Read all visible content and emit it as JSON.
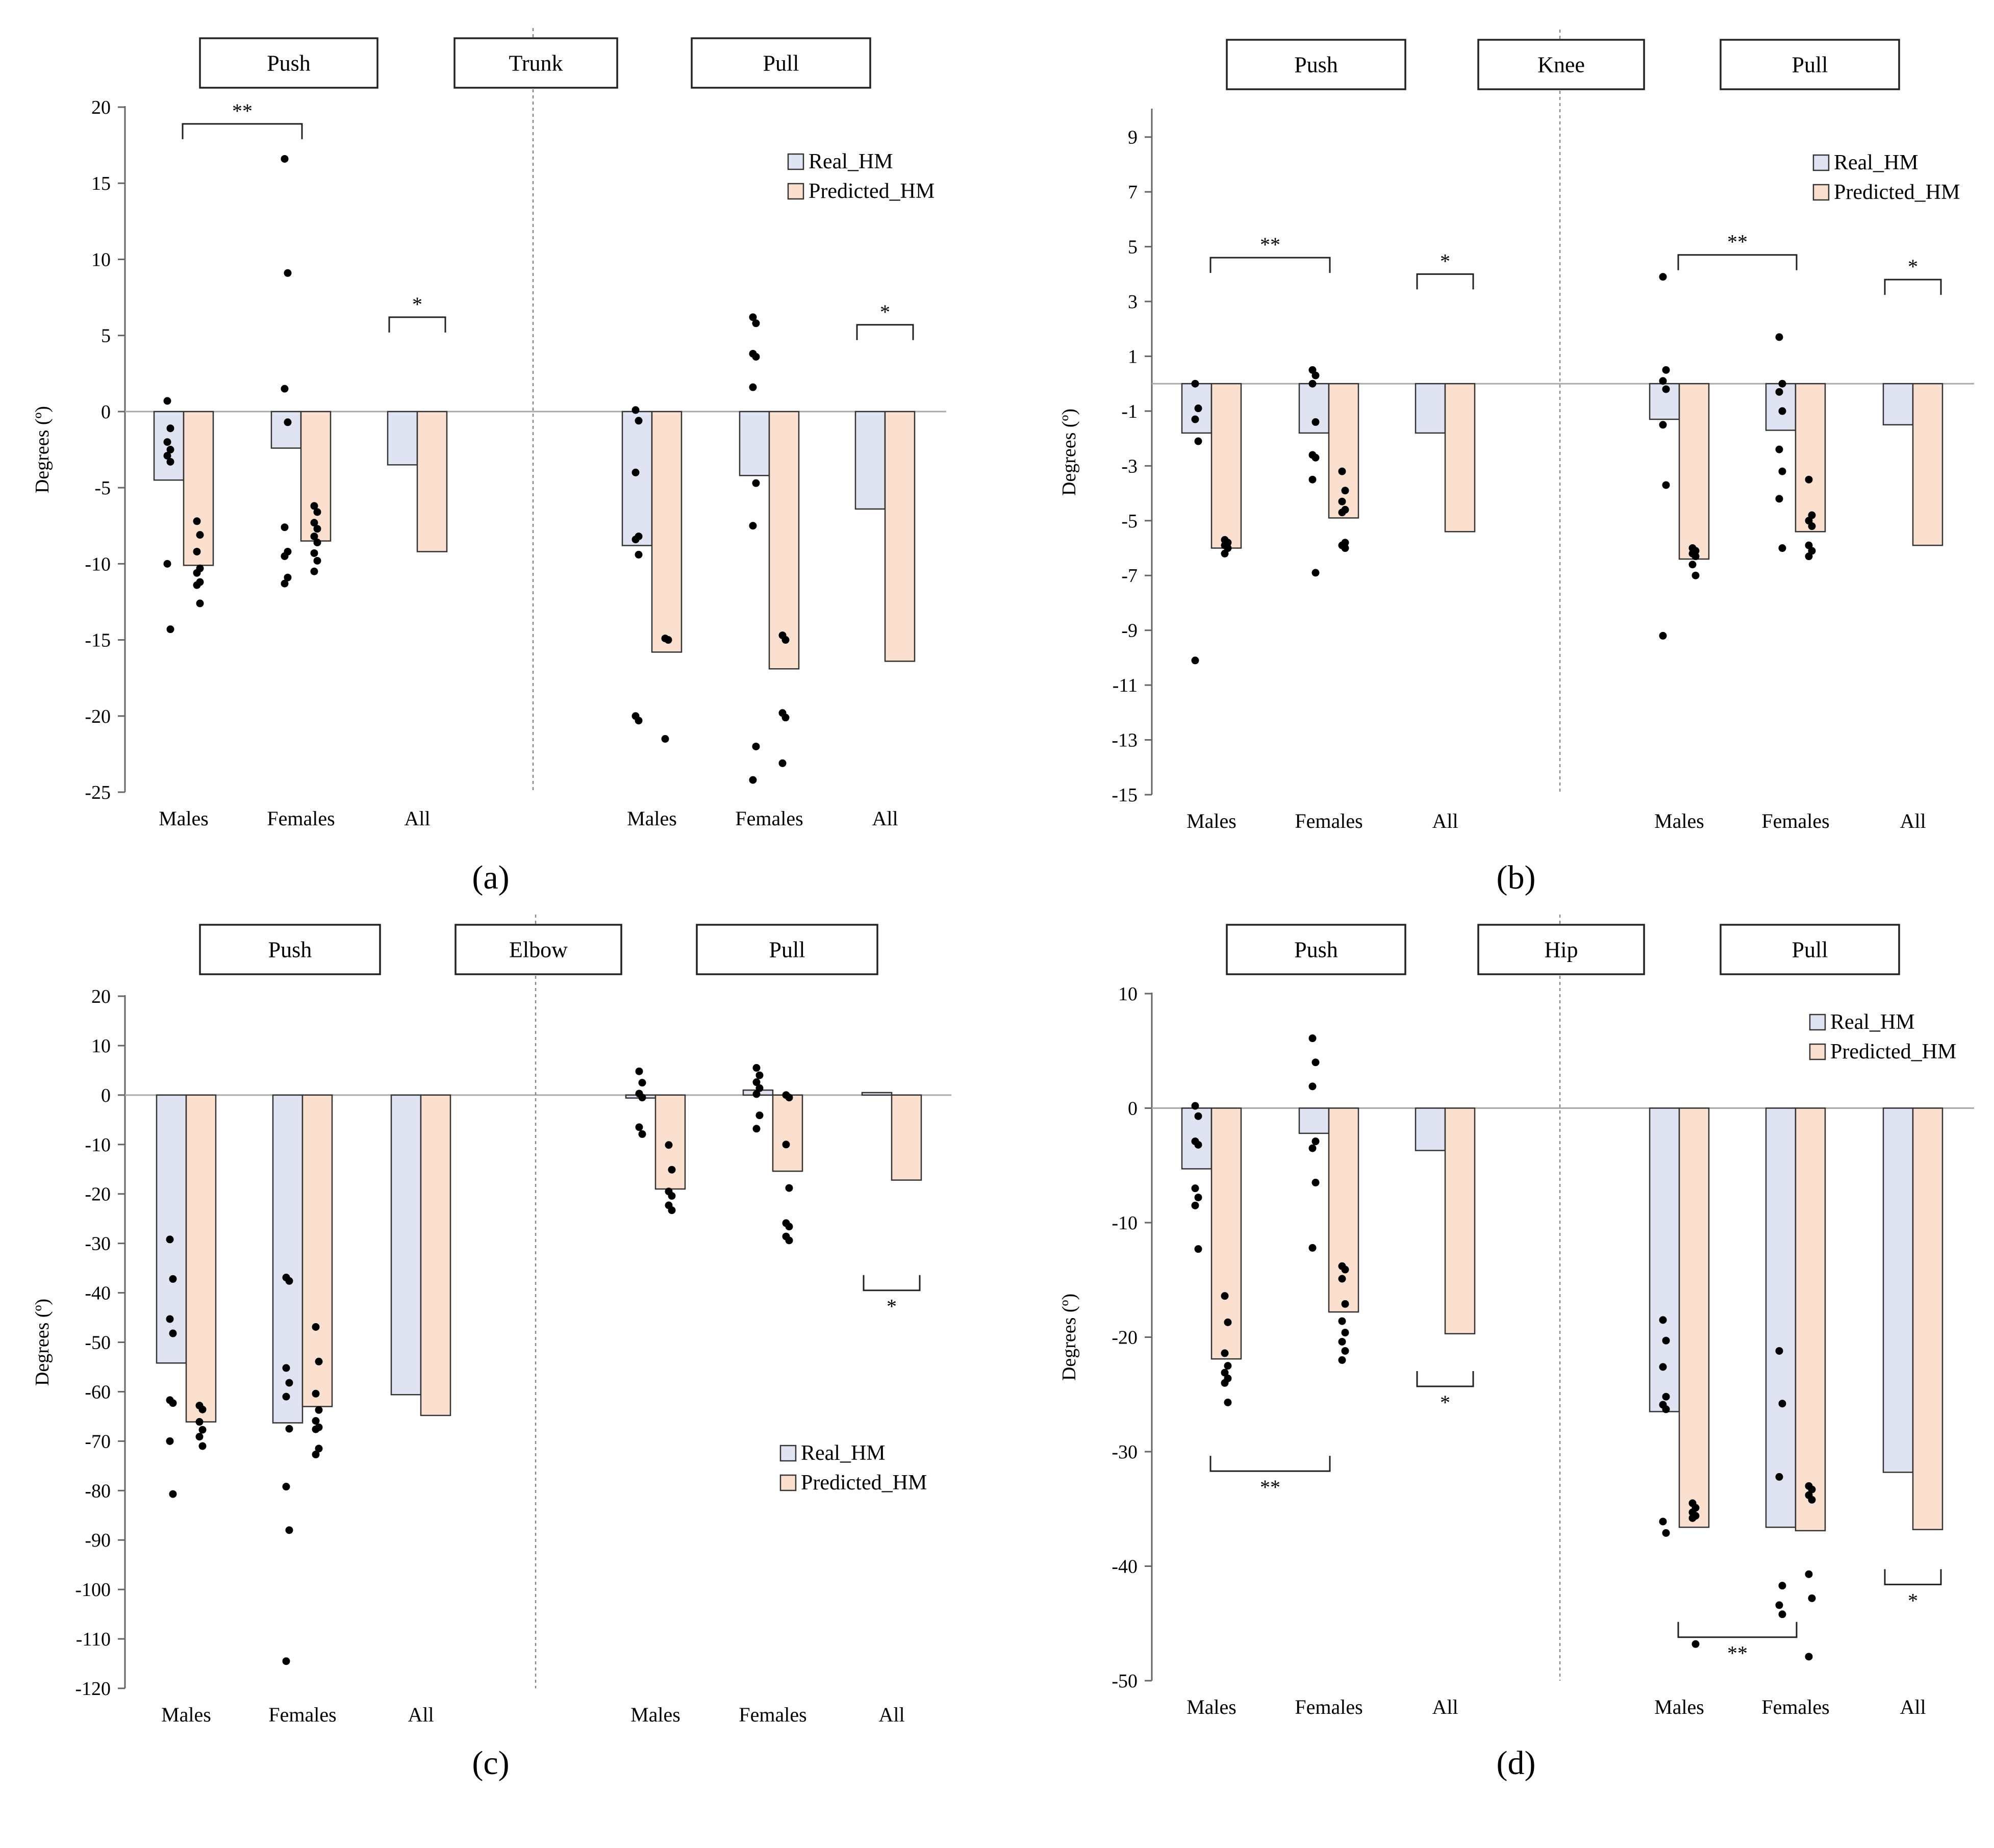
{
  "figure": {
    "colors": {
      "real_fill": "#dfe3f2",
      "predicted_fill": "#fbe0d0",
      "bar_stroke": "#333333",
      "dot": "#000000",
      "axis": "#666666",
      "zero_line": "#aaaaaa",
      "divider": "#888888"
    }
  },
  "chart_data": [
    {
      "panel_label": "(a)",
      "type": "bar",
      "section_labels": [
        "Push",
        "Trunk",
        "Pull"
      ],
      "ylabel": "Degrees (º)",
      "ylim": [
        -25,
        20
      ],
      "yticks": [
        20,
        15,
        10,
        5,
        0,
        -5,
        -10,
        -15,
        -20,
        -25
      ],
      "ytick_labels": [
        "20",
        "15",
        "10",
        "5",
        "0",
        "-5",
        "-10",
        "-15",
        "-20",
        "-25"
      ],
      "categories": [
        "Males",
        "Females",
        "All",
        "Males",
        "Females",
        "All"
      ],
      "legend_position": "top-right",
      "series": [
        {
          "name": "Real_HM",
          "values": [
            -4.5,
            -2.4,
            -3.5,
            -8.8,
            -4.2,
            -6.4
          ],
          "points": [
            [
              0.7,
              -1.1,
              -2.0,
              -2.5,
              -2.9,
              -3.3,
              -10.0,
              -14.3
            ],
            [
              16.6,
              9.1,
              1.5,
              -0.7,
              -7.6,
              -9.2,
              -9.5,
              -10.9,
              -11.3
            ],
            [],
            [
              0.1,
              -0.6,
              -4.0,
              -8.2,
              -8.4,
              -9.4,
              -20.0,
              -20.3
            ],
            [
              6.2,
              5.8,
              3.8,
              3.6,
              1.6,
              -4.7,
              -7.5,
              -22.0,
              -24.2
            ],
            []
          ]
        },
        {
          "name": "Predicted_HM",
          "values": [
            -10.1,
            -8.5,
            -9.2,
            -15.8,
            -16.9,
            -16.4
          ],
          "points": [
            [
              -7.2,
              -8.1,
              -9.2,
              -10.3,
              -10.6,
              -11.2,
              -11.4,
              -12.6
            ],
            [
              -6.2,
              -6.6,
              -7.3,
              -7.7,
              -8.2,
              -8.6,
              -9.3,
              -9.8,
              -10.5
            ],
            [],
            [
              -14.9,
              -15.0,
              -21.5
            ],
            [
              -14.7,
              -15.0,
              -19.8,
              -20.1,
              -23.1
            ],
            []
          ]
        }
      ],
      "brackets": [
        {
          "from_cat": 0,
          "to_cat": 1,
          "level": 18.9,
          "label": "**",
          "dir": "up"
        },
        {
          "from_cat": 2,
          "to_cat": 2,
          "level": 6.2,
          "label": "*",
          "dir": "up"
        },
        {
          "from_cat": 5,
          "to_cat": 5,
          "level": 5.7,
          "label": "*",
          "dir": "up"
        }
      ]
    },
    {
      "panel_label": "(b)",
      "type": "bar",
      "section_labels": [
        "Push",
        "Knee",
        "Pull"
      ],
      "ylabel": "Degrees (º)",
      "ylim": [
        -15,
        10
      ],
      "yticks": [
        9,
        7,
        5,
        3,
        1,
        -1,
        -3,
        -5,
        -7,
        -9,
        -11,
        -13,
        -15
      ],
      "ytick_labels": [
        "9",
        "7",
        "5",
        "3",
        "1",
        "-1",
        "-3",
        "-5",
        "-7",
        "-9",
        "-11",
        "-13",
        "-15"
      ],
      "categories": [
        "Males",
        "Females",
        "All",
        "Males",
        "Females",
        "All"
      ],
      "legend_position": "top-right",
      "series": [
        {
          "name": "Real_HM",
          "values": [
            -1.8,
            -1.8,
            -1.8,
            -1.3,
            -1.7,
            -1.5
          ],
          "points": [
            [
              0.0,
              -0.9,
              -1.3,
              -2.1,
              -10.1
            ],
            [
              0.5,
              0.3,
              0.0,
              -1.4,
              -2.6,
              -2.7,
              -3.5,
              -6.9
            ],
            [],
            [
              3.9,
              0.5,
              0.1,
              -0.2,
              -1.5,
              -3.7,
              -9.2
            ],
            [
              1.7,
              0.0,
              -0.3,
              -1.0,
              -2.4,
              -3.2,
              -4.2,
              -6.0
            ],
            []
          ]
        },
        {
          "name": "Predicted_HM",
          "values": [
            -6.0,
            -4.9,
            -5.4,
            -6.4,
            -5.4,
            -5.9
          ],
          "points": [
            [
              -5.7,
              -5.8,
              -5.9,
              -6.0,
              -6.2
            ],
            [
              -3.2,
              -3.9,
              -4.3,
              -4.6,
              -4.7,
              -5.8,
              -5.9,
              -6.0
            ],
            [],
            [
              -6.0,
              -6.1,
              -6.2,
              -6.3,
              -6.6,
              -7.0
            ],
            [
              -3.5,
              -4.8,
              -5.0,
              -5.2,
              -5.9,
              -6.1,
              -6.3
            ],
            []
          ]
        }
      ],
      "brackets": [
        {
          "from_cat": 0,
          "to_cat": 1,
          "level": 4.6,
          "label": "**",
          "dir": "up"
        },
        {
          "from_cat": 2,
          "to_cat": 2,
          "level": 4.0,
          "label": "*",
          "dir": "up"
        },
        {
          "from_cat": 3,
          "to_cat": 4,
          "level": 4.7,
          "label": "**",
          "dir": "up"
        },
        {
          "from_cat": 5,
          "to_cat": 5,
          "level": 3.8,
          "label": "*",
          "dir": "up"
        }
      ]
    },
    {
      "panel_label": "(c)",
      "type": "bar",
      "section_labels": [
        "Push",
        "Elbow",
        "Pull"
      ],
      "ylabel": "Degrees (º)",
      "ylim": [
        -120,
        20
      ],
      "yticks": [
        20,
        10,
        0,
        -10,
        -20,
        -30,
        -40,
        -50,
        -60,
        -70,
        -80,
        -90,
        -100,
        -110,
        -120
      ],
      "ytick_labels": [
        "20",
        "10",
        "0",
        "-10",
        "-20",
        "-30",
        "-40",
        "-50",
        "-60",
        "-70",
        "-80",
        "-90",
        "-100",
        "-110",
        "-120"
      ],
      "categories": [
        "Males",
        "Females",
        "All",
        "Males",
        "Females",
        "All"
      ],
      "legend_position": "bottom-right",
      "series": [
        {
          "name": "Real_HM",
          "values": [
            -54.2,
            -66.3,
            -60.6,
            -0.6,
            1.0,
            0.5
          ],
          "points": [
            [
              -29.2,
              -37.2,
              -45.3,
              -48.2,
              -61.7,
              -62.3,
              -70.0,
              -80.7
            ],
            [
              -36.9,
              -37.6,
              -55.2,
              -58.2,
              -61.0,
              -67.5,
              -79.2,
              -88.0,
              -114.5
            ],
            [],
            [
              4.8,
              2.5,
              0.3,
              -0.5,
              -6.5,
              -7.9
            ],
            [
              5.5,
              4.0,
              2.6,
              1.4,
              0.2,
              -4.1,
              -6.8
            ],
            []
          ]
        },
        {
          "name": "Predicted_HM",
          "values": [
            -66.1,
            -63.0,
            -64.8,
            -19.0,
            -15.4,
            -17.2
          ],
          "points": [
            [
              -62.8,
              -63.6,
              -66.1,
              -67.7,
              -69.1,
              -71.0
            ],
            [
              -46.9,
              -53.9,
              -60.4,
              -63.7,
              -65.9,
              -67.2,
              -67.6,
              -71.5,
              -72.7
            ],
            [],
            [
              -10.1,
              -15.1,
              -19.5,
              -20.4,
              -22.3,
              -23.3
            ],
            [
              0.0,
              -0.5,
              -10.0,
              -18.8,
              -25.9,
              -26.6,
              -28.6,
              -29.4
            ],
            []
          ]
        }
      ],
      "brackets": [
        {
          "from_cat": 5,
          "to_cat": 5,
          "level": -39.5,
          "label": "*",
          "dir": "down"
        }
      ]
    },
    {
      "panel_label": "(d)",
      "type": "bar",
      "section_labels": [
        "Push",
        "Hip",
        "Pull"
      ],
      "ylabel": "Degrees (º)",
      "ylim": [
        -50,
        10
      ],
      "yticks": [
        10,
        0,
        -10,
        -20,
        -30,
        -40,
        -50
      ],
      "ytick_labels": [
        "10",
        "0",
        "-10",
        "-20",
        "-30",
        "-40",
        "-50"
      ],
      "categories": [
        "Males",
        "Females",
        "All",
        "Males",
        "Females",
        "All"
      ],
      "legend_position": "top-right",
      "series": [
        {
          "name": "Real_HM",
          "values": [
            -5.3,
            -2.2,
            -3.7,
            -26.5,
            -36.6,
            -31.8
          ],
          "points": [
            [
              0.2,
              -0.7,
              -2.9,
              -3.2,
              -7.0,
              -7.8,
              -8.5,
              -12.3
            ],
            [
              6.1,
              4.0,
              1.9,
              -2.9,
              -3.5,
              -6.5,
              -12.2
            ],
            [],
            [
              -18.5,
              -20.3,
              -22.6,
              -25.2,
              -25.9,
              -26.3,
              -36.1,
              -37.1
            ],
            [
              -21.2,
              -25.8,
              -32.2,
              -41.7,
              -43.4,
              -44.2
            ],
            []
          ]
        },
        {
          "name": "Predicted_HM",
          "values": [
            -21.9,
            -17.8,
            -19.7,
            -36.6,
            -36.9,
            -36.8
          ],
          "points": [
            [
              -16.4,
              -18.7,
              -21.4,
              -22.5,
              -23.1,
              -23.6,
              -24.0,
              -25.7
            ],
            [
              -13.8,
              -14.1,
              -14.9,
              -17.1,
              -18.6,
              -19.6,
              -20.4,
              -21.2,
              -22.0
            ],
            [],
            [
              -34.5,
              -34.9,
              -35.3,
              -35.6,
              -35.8,
              -46.8
            ],
            [
              -33.0,
              -33.3,
              -33.8,
              -34.2,
              -40.7,
              -42.8,
              -47.9
            ],
            []
          ]
        }
      ],
      "brackets": [
        {
          "from_cat": 0,
          "to_cat": 1,
          "level": -31.7,
          "label": "**",
          "dir": "down"
        },
        {
          "from_cat": 2,
          "to_cat": 2,
          "level": -24.3,
          "label": "*",
          "dir": "down"
        },
        {
          "from_cat": 3,
          "to_cat": 4,
          "level": -46.2,
          "label": "**",
          "dir": "down"
        },
        {
          "from_cat": 5,
          "to_cat": 5,
          "level": -41.6,
          "label": "*",
          "dir": "down"
        }
      ]
    }
  ]
}
